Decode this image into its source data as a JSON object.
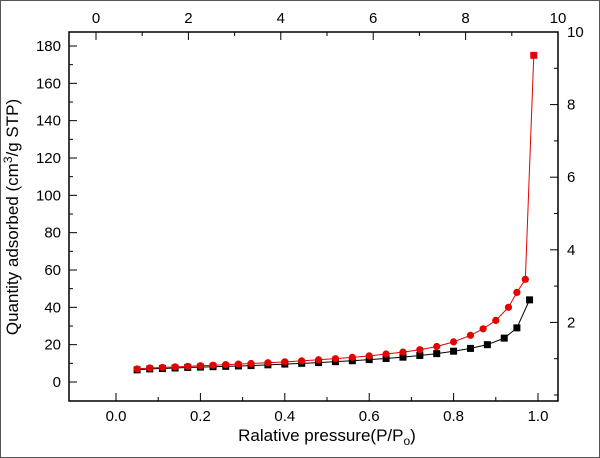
{
  "figure": {
    "background": "#ffffff",
    "frame_color": "#000000"
  },
  "chart_data": {
    "type": "line",
    "title": "",
    "xlabel": "Ralative pressure(P/Po)",
    "ylabel": "Quantity adsorbed (cm3/g STP)",
    "xlabel_parts": {
      "pre": "Ralative pressure(P/P",
      "sub": "o",
      "post": ")"
    },
    "ylabel_parts": {
      "pre": "Quantity adsorbed (cm",
      "sup": "3",
      "post": "/g STP)"
    },
    "grid": false,
    "legend": "none",
    "axes": {
      "bottom": {
        "range": [
          0.0,
          1.0
        ],
        "major": [
          {
            "v": 0.0,
            "label": "0.0"
          },
          {
            "v": 0.2,
            "label": "0.2"
          },
          {
            "v": 0.4,
            "label": "0.4"
          },
          {
            "v": 0.6,
            "label": "0.6"
          },
          {
            "v": 0.8,
            "label": "0.8"
          },
          {
            "v": 1.0,
            "label": "1.0"
          }
        ],
        "minor": [
          0.1,
          0.3,
          0.5,
          0.7,
          0.9
        ]
      },
      "left": {
        "range": [
          0,
          180
        ],
        "major": [
          {
            "v": 0,
            "label": "0"
          },
          {
            "v": 20,
            "label": "20"
          },
          {
            "v": 40,
            "label": "40"
          },
          {
            "v": 60,
            "label": "60"
          },
          {
            "v": 80,
            "label": "80"
          },
          {
            "v": 100,
            "label": "100"
          },
          {
            "v": 120,
            "label": "120"
          },
          {
            "v": 140,
            "label": "140"
          },
          {
            "v": 160,
            "label": "160"
          },
          {
            "v": 180,
            "label": "180"
          }
        ],
        "minor": [
          10,
          30,
          50,
          70,
          90,
          110,
          130,
          150,
          170
        ]
      },
      "top": {
        "range": [
          0,
          10
        ],
        "major": [
          {
            "v": 0,
            "label": "0"
          },
          {
            "v": 2,
            "label": "2"
          },
          {
            "v": 4,
            "label": "4"
          },
          {
            "v": 6,
            "label": "6"
          },
          {
            "v": 8,
            "label": "8"
          },
          {
            "v": 10,
            "label": "10"
          }
        ],
        "minor": [
          1,
          3,
          5,
          7,
          9
        ]
      },
      "right": {
        "range": [
          0,
          10
        ],
        "major": [
          {
            "v": 2,
            "label": "2"
          },
          {
            "v": 4,
            "label": "4"
          },
          {
            "v": 6,
            "label": "6"
          },
          {
            "v": 8,
            "label": "8"
          },
          {
            "v": 10,
            "label": "10"
          }
        ],
        "minor": [
          0,
          1,
          3,
          5,
          7,
          9
        ]
      }
    },
    "series": [
      {
        "name": "black-squares-isotherm",
        "color": "#000000",
        "marker": "square",
        "x": [
          0.05,
          0.08,
          0.11,
          0.14,
          0.17,
          0.2,
          0.23,
          0.26,
          0.29,
          0.32,
          0.36,
          0.4,
          0.44,
          0.48,
          0.52,
          0.56,
          0.6,
          0.64,
          0.68,
          0.72,
          0.76,
          0.8,
          0.84,
          0.88,
          0.92,
          0.95,
          0.98
        ],
        "y": [
          6.5,
          7.0,
          7.2,
          7.5,
          7.8,
          8.0,
          8.2,
          8.4,
          8.6,
          8.8,
          9.2,
          9.6,
          10.0,
          10.4,
          10.9,
          11.4,
          12.0,
          12.6,
          13.3,
          14.2,
          15.2,
          16.5,
          18.0,
          20.0,
          23.5,
          29.0,
          44.0
        ]
      },
      {
        "name": "red-circles-isotherm",
        "color": "#e60000",
        "marker": "circle",
        "end_marker": "square",
        "x": [
          0.05,
          0.08,
          0.11,
          0.14,
          0.17,
          0.2,
          0.23,
          0.26,
          0.29,
          0.32,
          0.36,
          0.4,
          0.44,
          0.48,
          0.52,
          0.56,
          0.6,
          0.64,
          0.68,
          0.72,
          0.76,
          0.8,
          0.84,
          0.87,
          0.9,
          0.93,
          0.95,
          0.97,
          0.99
        ],
        "y": [
          7.0,
          7.5,
          7.8,
          8.1,
          8.4,
          8.7,
          9.0,
          9.3,
          9.6,
          9.9,
          10.3,
          10.8,
          11.3,
          11.9,
          12.5,
          13.2,
          14.0,
          15.0,
          16.0,
          17.3,
          19.0,
          21.5,
          25.0,
          28.5,
          33.0,
          40.0,
          48.0,
          55.0,
          175.0
        ]
      }
    ]
  }
}
